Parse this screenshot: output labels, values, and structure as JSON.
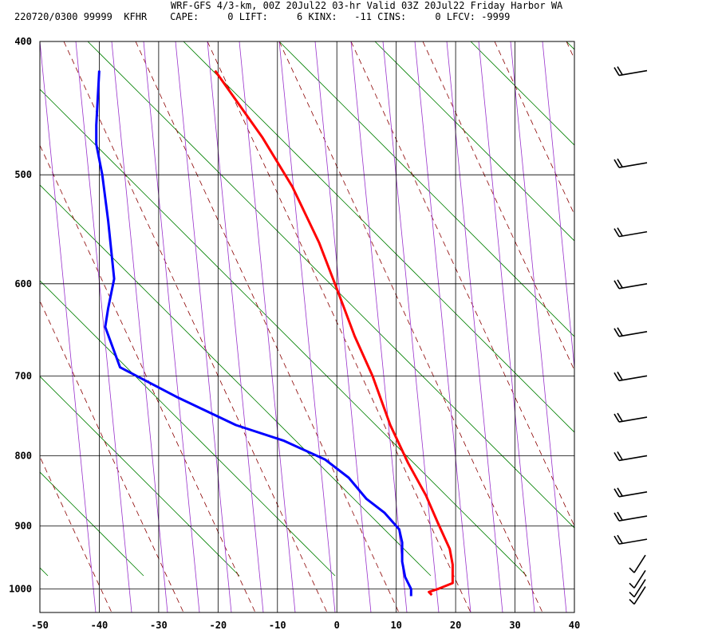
{
  "header": {
    "title": "WRF-GFS 4/3-km, 00Z 20Jul22 03-hr Valid 03Z 20Jul22 Friday Harbor WA",
    "subtitle": "220720/0300 99999  KFHR    CAPE:     0 LIFT:     6 KINX:   -11 CINS:     0 LFCV: -9999"
  },
  "chart_data": {
    "type": "line",
    "title": "WRF-GFS 4/3-km, 00Z 20Jul22 03-hr Valid 03Z 20Jul22 Friday Harbor WA",
    "xlabel": "",
    "ylabel": "",
    "xlim": [
      -50,
      40
    ],
    "ylim": [
      1040,
      400
    ],
    "x_ticks": [
      -50,
      -40,
      -30,
      -20,
      -10,
      0,
      10,
      20,
      30,
      40
    ],
    "y_ticks": [
      400,
      500,
      600,
      700,
      800,
      900,
      1000
    ],
    "y_scale": "log-pressure",
    "grid": true,
    "colors": {
      "temperature": "#ff0000",
      "dewpoint": "#0000ff",
      "isotherms": "#000000",
      "dry_adiabats": "#008000",
      "moist_adiabats": "#8b0000",
      "mixing_ratio": "#9932cc"
    },
    "series": [
      {
        "key": "temperature",
        "points": [
          [
            -20.5,
            420
          ],
          [
            -12.5,
            470
          ],
          [
            -7.5,
            510
          ],
          [
            -3,
            560
          ],
          [
            0,
            605
          ],
          [
            3,
            655
          ],
          [
            6,
            700
          ],
          [
            9,
            760
          ],
          [
            12,
            810
          ],
          [
            15,
            855
          ],
          [
            17,
            895
          ],
          [
            19,
            935
          ],
          [
            19.5,
            960
          ],
          [
            19.5,
            990
          ],
          [
            17,
            1000
          ],
          [
            15.5,
            1005
          ],
          [
            16,
            1010
          ]
        ]
      },
      {
        "key": "dewpoint",
        "points": [
          [
            -40,
            420
          ],
          [
            -40.5,
            460
          ],
          [
            -40.5,
            475
          ],
          [
            -39.5,
            500
          ],
          [
            -38.5,
            540
          ],
          [
            -37.5,
            595
          ],
          [
            -38.5,
            625
          ],
          [
            -39,
            645
          ],
          [
            -36.5,
            690
          ],
          [
            -27,
            725
          ],
          [
            -17,
            760
          ],
          [
            -9,
            780
          ],
          [
            -2,
            805
          ],
          [
            2,
            830
          ],
          [
            5,
            860
          ],
          [
            8,
            880
          ],
          [
            10.5,
            905
          ],
          [
            11,
            925
          ],
          [
            11,
            955
          ],
          [
            11.5,
            980
          ],
          [
            12.5,
            1000
          ],
          [
            12.5,
            1012
          ]
        ]
      }
    ],
    "wind_barbs": [
      420,
      490,
      550,
      600,
      650,
      700,
      750,
      800,
      850,
      885,
      920,
      960,
      985,
      1000,
      1012
    ]
  }
}
